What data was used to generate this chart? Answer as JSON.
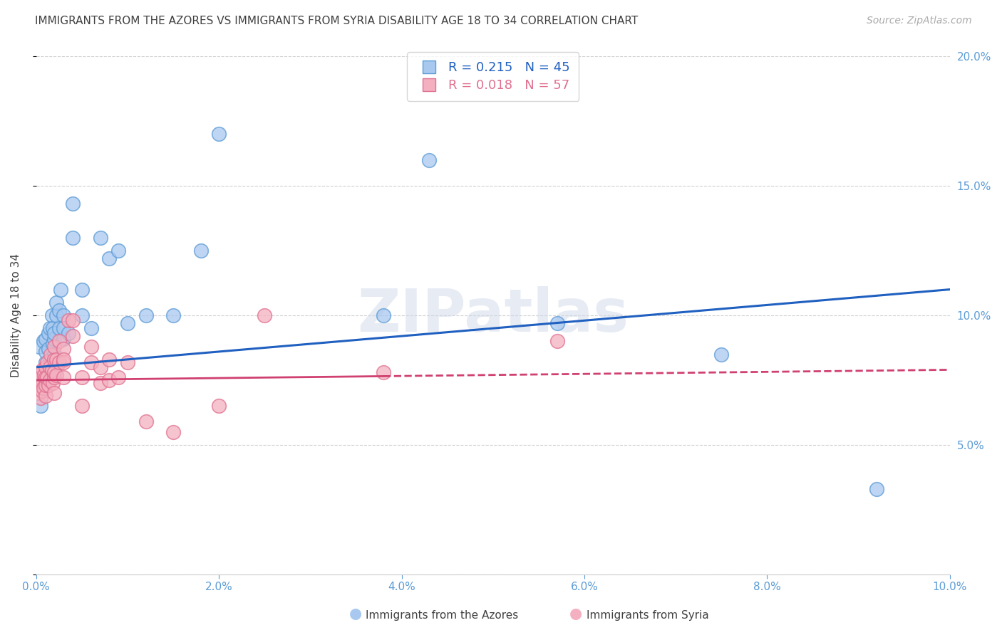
{
  "title": "IMMIGRANTS FROM THE AZORES VS IMMIGRANTS FROM SYRIA DISABILITY AGE 18 TO 34 CORRELATION CHART",
  "source": "Source: ZipAtlas.com",
  "ylabel": "Disability Age 18 to 34",
  "xlim": [
    0.0,
    0.1
  ],
  "ylim": [
    0.0,
    0.2
  ],
  "x_ticks": [
    0.0,
    0.02,
    0.04,
    0.06,
    0.08,
    0.1
  ],
  "y_ticks": [
    0.0,
    0.05,
    0.1,
    0.15,
    0.2
  ],
  "x_tick_labels": [
    "0.0%",
    "2.0%",
    "4.0%",
    "6.0%",
    "8.0%",
    "10.0%"
  ],
  "y_tick_labels_right": [
    "",
    "5.0%",
    "10.0%",
    "15.0%",
    "20.0%"
  ],
  "azores_R": 0.215,
  "azores_N": 45,
  "syria_R": 0.018,
  "syria_N": 57,
  "azores_color": "#a8c8f0",
  "syria_color": "#f4b0c0",
  "azores_edge_color": "#5b9bd5",
  "syria_edge_color": "#e07090",
  "azores_line_color": "#2060c0",
  "syria_line_color": "#d04070",
  "background_color": "#ffffff",
  "grid_color": "#d0d0d0",
  "title_color": "#404040",
  "axis_label_color": "#404040",
  "tick_color_right": "#5b9bd5",
  "tick_color_bottom": "#5b9bd5",
  "legend_label_azores": "Immigrants from the Azores",
  "legend_label_syria": "Immigrants from Syria",
  "azores_x": [
    0.0003,
    0.0005,
    0.0008,
    0.001,
    0.001,
    0.001,
    0.001,
    0.0013,
    0.0013,
    0.0015,
    0.0015,
    0.0017,
    0.0018,
    0.0018,
    0.002,
    0.002,
    0.002,
    0.002,
    0.0022,
    0.0022,
    0.0025,
    0.0025,
    0.0027,
    0.003,
    0.003,
    0.003,
    0.0035,
    0.004,
    0.004,
    0.005,
    0.005,
    0.006,
    0.007,
    0.008,
    0.009,
    0.01,
    0.012,
    0.015,
    0.018,
    0.02,
    0.038,
    0.043,
    0.057,
    0.075,
    0.092
  ],
  "azores_y": [
    0.088,
    0.065,
    0.09,
    0.082,
    0.086,
    0.091,
    0.075,
    0.093,
    0.087,
    0.095,
    0.083,
    0.1,
    0.089,
    0.095,
    0.091,
    0.085,
    0.093,
    0.078,
    0.1,
    0.105,
    0.095,
    0.102,
    0.11,
    0.091,
    0.1,
    0.095,
    0.093,
    0.13,
    0.143,
    0.1,
    0.11,
    0.095,
    0.13,
    0.122,
    0.125,
    0.097,
    0.1,
    0.1,
    0.125,
    0.17,
    0.1,
    0.16,
    0.097,
    0.085,
    0.033
  ],
  "syria_x": [
    0.0001,
    0.0002,
    0.0003,
    0.0003,
    0.0004,
    0.0005,
    0.0005,
    0.0006,
    0.0007,
    0.0007,
    0.0008,
    0.0009,
    0.001,
    0.001,
    0.001,
    0.001,
    0.001,
    0.0012,
    0.0012,
    0.0013,
    0.0015,
    0.0015,
    0.0016,
    0.0017,
    0.0018,
    0.002,
    0.002,
    0.002,
    0.002,
    0.002,
    0.0022,
    0.0022,
    0.0025,
    0.0025,
    0.003,
    0.003,
    0.003,
    0.003,
    0.0035,
    0.004,
    0.004,
    0.005,
    0.005,
    0.006,
    0.006,
    0.007,
    0.007,
    0.008,
    0.008,
    0.009,
    0.01,
    0.012,
    0.015,
    0.02,
    0.025,
    0.038,
    0.057
  ],
  "syria_y": [
    0.072,
    0.075,
    0.07,
    0.078,
    0.073,
    0.068,
    0.076,
    0.071,
    0.074,
    0.079,
    0.072,
    0.077,
    0.075,
    0.069,
    0.073,
    0.08,
    0.076,
    0.076,
    0.082,
    0.073,
    0.08,
    0.075,
    0.085,
    0.079,
    0.074,
    0.083,
    0.088,
    0.076,
    0.07,
    0.078,
    0.083,
    0.077,
    0.09,
    0.082,
    0.087,
    0.082,
    0.076,
    0.083,
    0.098,
    0.098,
    0.092,
    0.065,
    0.076,
    0.082,
    0.088,
    0.074,
    0.08,
    0.075,
    0.083,
    0.076,
    0.082,
    0.059,
    0.055,
    0.065,
    0.1,
    0.078,
    0.09
  ]
}
